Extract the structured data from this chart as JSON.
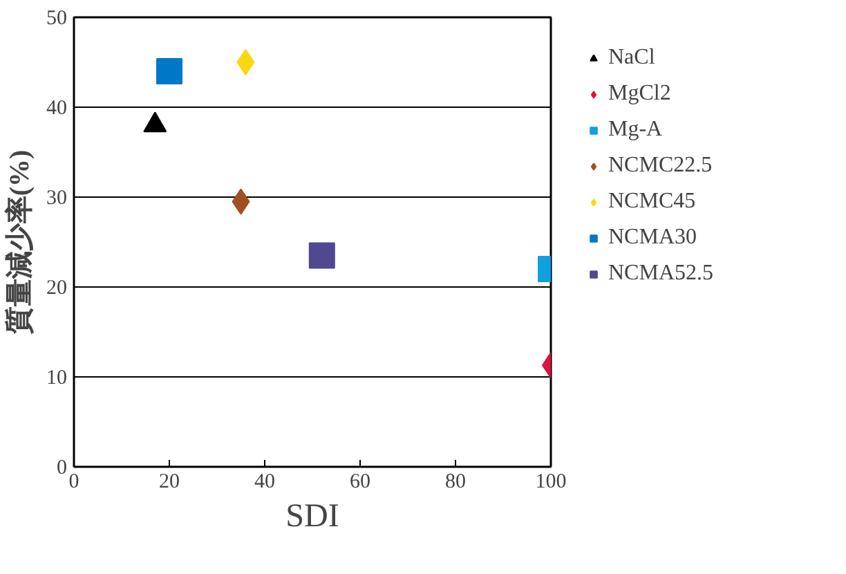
{
  "chart_data": {
    "type": "scatter",
    "xlabel": "SDI",
    "ylabel": "質量減少率(%)",
    "xlim": [
      0,
      100
    ],
    "xticks": [
      0,
      20,
      40,
      60,
      80,
      100
    ],
    "ylim": [
      0,
      50
    ],
    "yticks": [
      0,
      10,
      20,
      30,
      40,
      50
    ],
    "grid": "y",
    "legend": "right",
    "series": [
      {
        "name": "NaCl",
        "color": "#000000",
        "marker": "triangle",
        "x": [
          17
        ],
        "values": [
          38
        ]
      },
      {
        "name": "MgCl2",
        "color": "#e0103c",
        "marker": "diamond",
        "x": [
          100
        ],
        "values": [
          11.3
        ]
      },
      {
        "name": "Mg-A",
        "color": "#10a0e0",
        "marker": "square",
        "x": [
          100
        ],
        "values": [
          22
        ]
      },
      {
        "name": "NCMC22.5",
        "color": "#a05020",
        "marker": "diamond",
        "x": [
          35
        ],
        "values": [
          29.5
        ]
      },
      {
        "name": "NCMC45",
        "color": "#f8d810",
        "marker": "diamond",
        "x": [
          36
        ],
        "values": [
          45
        ]
      },
      {
        "name": "NCMA30",
        "color": "#0078c8",
        "marker": "square",
        "x": [
          20
        ],
        "values": [
          44
        ]
      },
      {
        "name": "NCMA52.5",
        "color": "#504890",
        "marker": "square",
        "x": [
          52
        ],
        "values": [
          23.5
        ]
      }
    ]
  }
}
